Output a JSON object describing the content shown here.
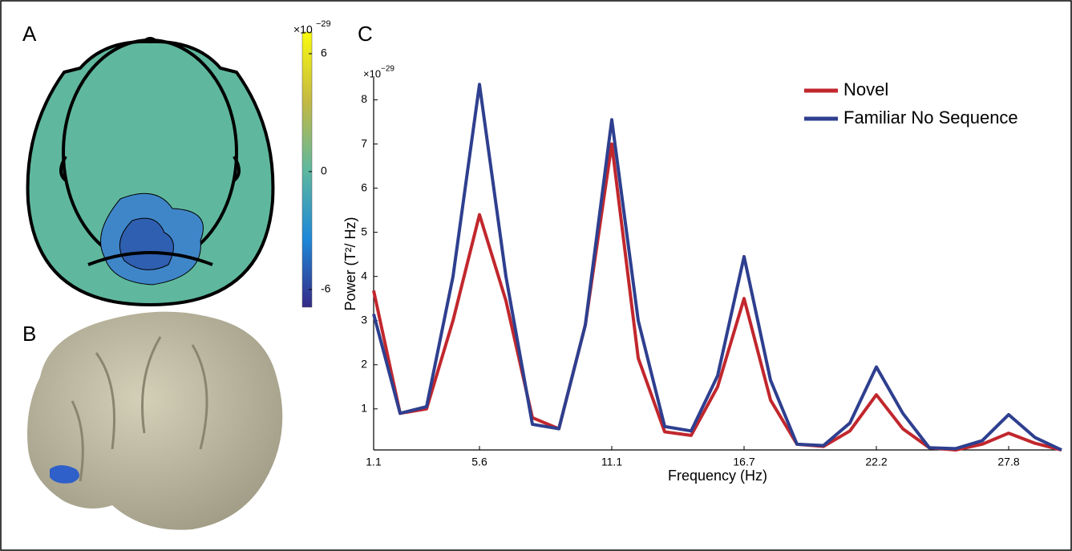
{
  "panel_labels": [
    "A",
    "B",
    "C"
  ],
  "colorbar": {
    "multiplier": "×10",
    "exponent": "−29",
    "ylim": [
      -6.9,
      7.1
    ],
    "yticks": [
      6,
      0,
      -6
    ]
  },
  "chart_data": {
    "type": "line",
    "y_multiplier": "×10",
    "y_exponent": "−29",
    "x_label": "Frequency (Hz)",
    "y_label": "Power (T²/ Hz)",
    "x": [
      1.11,
      2.22,
      3.33,
      4.44,
      5.55,
      6.66,
      7.77,
      8.88,
      9.99,
      11.1,
      12.21,
      13.32,
      14.43,
      15.54,
      16.65,
      17.76,
      18.87,
      19.98,
      21.09,
      22.2,
      23.31,
      24.42,
      25.53,
      26.64,
      27.75,
      28.86,
      29.97
    ],
    "series": [
      {
        "name": "Novel",
        "color": "#c1272d",
        "values": [
          3.68,
          0.9,
          1.0,
          3.0,
          5.4,
          3.45,
          0.8,
          0.55,
          2.9,
          7.0,
          2.15,
          0.48,
          0.4,
          1.5,
          3.5,
          1.2,
          0.2,
          0.15,
          0.5,
          1.32,
          0.55,
          0.12,
          0.07,
          0.2,
          0.45,
          0.22,
          0.07
        ]
      },
      {
        "name": "Familiar No Sequence",
        "color": "#2e3f8f",
        "values": [
          3.15,
          0.9,
          1.05,
          4.0,
          8.35,
          4.0,
          0.65,
          0.55,
          2.9,
          7.55,
          3.0,
          0.6,
          0.5,
          1.75,
          4.45,
          1.65,
          0.2,
          0.17,
          0.68,
          1.95,
          0.9,
          0.12,
          0.1,
          0.28,
          0.87,
          0.35,
          0.07
        ]
      }
    ],
    "xlim": [
      1.11,
      29.97
    ],
    "ylim": [
      0.07,
      8.5
    ],
    "xticks": [
      {
        "value": 1.11,
        "label": "1.1"
      },
      {
        "value": 5.55,
        "label": "5.6"
      },
      {
        "value": 11.1,
        "label": "11.1"
      },
      {
        "value": 16.65,
        "label": "16.7"
      },
      {
        "value": 22.2,
        "label": "22.2"
      },
      {
        "value": 27.75,
        "label": "27.8"
      }
    ],
    "yticks": [
      1,
      2,
      3,
      4,
      5,
      6,
      7,
      8
    ],
    "legend": "upper right",
    "grid": false
  }
}
